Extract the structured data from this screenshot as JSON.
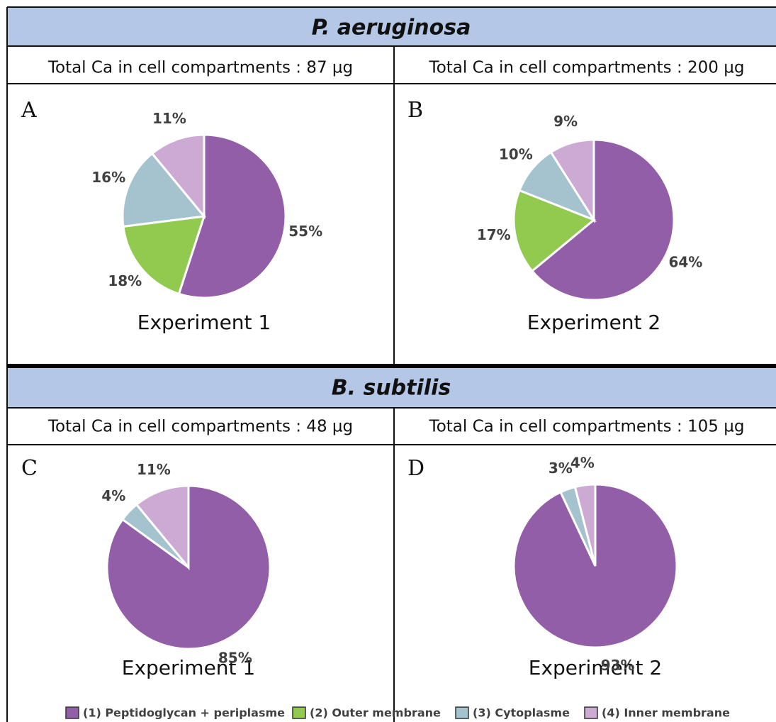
{
  "sections": [
    "P. aeruginosa",
    "B. subtilis"
  ],
  "chart_data": [
    {
      "type": "pie",
      "panel": "A",
      "total": "Total Ca in cell compartments : 87 µg",
      "caption": "Experiment 1",
      "categories": [
        "(1) Peptidoglycan + periplasme",
        "(2) Outer membrane",
        "(3) Cytoplasme",
        "(4) Inner membrane"
      ],
      "values": [
        55,
        18,
        16,
        11
      ],
      "value_labels": [
        "55%",
        "18%",
        "16%",
        "11%"
      ],
      "colors": [
        "#925ea8",
        "#92c94f",
        "#a5c2cf",
        "#cdaad3"
      ]
    },
    {
      "type": "pie",
      "panel": "B",
      "total": "Total Ca in cell compartments : 200 µg",
      "caption": "Experiment 2",
      "categories": [
        "(1) Peptidoglycan + periplasme",
        "(2) Outer membrane",
        "(3) Cytoplasme",
        "(4) Inner membrane"
      ],
      "values": [
        64,
        17,
        10,
        9
      ],
      "value_labels": [
        "64%",
        "17%",
        "10%",
        "9%"
      ],
      "colors": [
        "#925ea8",
        "#92c94f",
        "#a5c2cf",
        "#cdaad3"
      ]
    },
    {
      "type": "pie",
      "panel": "C",
      "total": "Total Ca in cell compartments : 48 µg",
      "caption": "Experiment 1",
      "categories": [
        "(1) Peptidoglycan + periplasme",
        "(3) Cytoplasme",
        "(4) Inner membrane"
      ],
      "values": [
        85,
        4,
        11
      ],
      "value_labels": [
        "85%",
        "4%",
        "11%"
      ],
      "colors": [
        "#925ea8",
        "#a5c2cf",
        "#cdaad3"
      ]
    },
    {
      "type": "pie",
      "panel": "D",
      "total": "Total Ca in cell compartments : 105 µg",
      "caption": "Experiment 2",
      "categories": [
        "(1) Peptidoglycan + periplasme",
        "(3) Cytoplasme",
        "(4) Inner membrane"
      ],
      "values": [
        93,
        3,
        4
      ],
      "value_labels": [
        "93%",
        "3%",
        "4%"
      ],
      "colors": [
        "#925ea8",
        "#a5c2cf",
        "#cdaad3"
      ]
    }
  ]
}
